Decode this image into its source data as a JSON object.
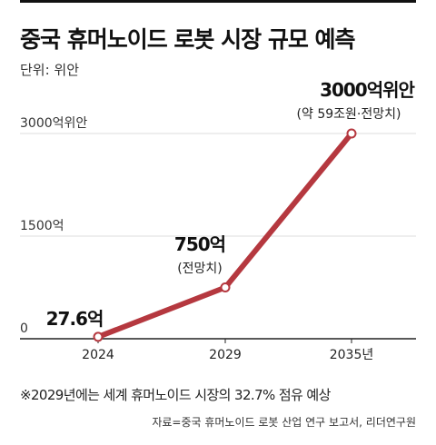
{
  "header": {
    "title": "중국 휴머노이드 로봇 시장 규모 예측",
    "unit": "단위: 위안"
  },
  "footer": {
    "note": "※2029년에는 세계 휴머노이드 시장의 32.7% 점유 예상",
    "source": "자료=중국 휴머노이드 로봇 산업 연구 보고서, 리더연구원"
  },
  "colors": {
    "line": "#b5383f",
    "marker_fill": "#ffffff",
    "grid": "#dcdcdc",
    "axis": "#222222"
  },
  "chart_data": {
    "type": "line",
    "title": "중국 휴머노이드 로봇 시장 규모 예측",
    "ylabel": "",
    "xlabel": "",
    "categories": [
      "2024",
      "2029",
      "2035년"
    ],
    "values": [
      27.6,
      750,
      3000
    ],
    "y_ticks": [
      {
        "value": 0,
        "label": "0"
      },
      {
        "value": 1500,
        "label": "1500억"
      },
      {
        "value": 3000,
        "label": "3000억위안"
      }
    ],
    "ylim": [
      0,
      3000
    ],
    "grid": true,
    "annotations": [
      {
        "main": "27.6억",
        "sub": ""
      },
      {
        "main": "750억",
        "sub": "(전망치)"
      },
      {
        "main": "3000억위안",
        "sub": "(약 59조원·전망치)"
      }
    ]
  }
}
